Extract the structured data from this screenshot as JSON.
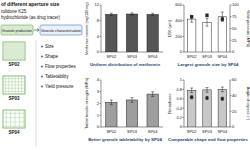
{
  "diagram": {
    "title": "of different aperture size",
    "lines": [
      "rolidone K25",
      "hydrochloride (as drug tracer)"
    ],
    "headers": [
      "Granule production",
      "Granule characterisation"
    ],
    "screens": [
      "SP02",
      "SP03",
      "SP04"
    ],
    "properties": [
      "Size",
      "Shape",
      "Flow properties",
      "Tabletability",
      "Yield pressure"
    ]
  },
  "chart_data": [
    {
      "type": "bar",
      "y_label": "Metformin content (mg/100 mg)",
      "caption": "Uniform distribution of metformin",
      "categories": [
        "SP02",
        "SP03",
        "SP04"
      ],
      "series": [
        {
          "color": "#555555",
          "values": [
            9.6,
            9.7,
            9.6
          ],
          "errors": [
            0.3,
            0.3,
            0.3
          ]
        }
      ],
      "ylim": [
        0,
        12
      ],
      "yticks": [
        0,
        4,
        8,
        12
      ]
    },
    {
      "type": "bar",
      "y_label": "D50 (µm)",
      "y2_label": "Yield pressure (MPa)",
      "caption": "Largest granule size by SP04",
      "categories": [
        "SP02",
        "SP03",
        "SP04"
      ],
      "series": [
        {
          "color": "#ffffff",
          "values": [
            420,
            380,
            450
          ],
          "errors": [
            40,
            50,
            60
          ]
        },
        {
          "type": "scatter",
          "marker": "square",
          "axis": "y2",
          "color": "#222222",
          "values": [
            75,
            78,
            70
          ],
          "errors": [
            3,
            3,
            3
          ]
        }
      ],
      "ylim": [
        0,
        600
      ],
      "yticks": [
        0,
        200,
        400,
        600
      ],
      "y2lim": [
        0,
        100
      ],
      "y2ticks": [
        0,
        25,
        50,
        75,
        100
      ]
    },
    {
      "type": "bar",
      "y_label": "Tablet tensile strength (MPa)",
      "caption": "Better granule tabletability by SP04",
      "categories": [
        "SP02",
        "SP03",
        "SP04"
      ],
      "series": [
        {
          "color": "#9e9e9e",
          "values": [
            2.1,
            2.3,
            2.8
          ],
          "errors": [
            0.2,
            0.2,
            0.2
          ]
        }
      ],
      "ylim": [
        0,
        4
      ],
      "yticks": [
        0,
        1,
        2,
        3,
        4
      ]
    },
    {
      "type": "bar",
      "y_label": "Roundness",
      "y2_label": "Angle of repose (°)",
      "caption": "Comparable shape and flow properties",
      "categories": [
        "SP02",
        "SP03",
        "SP04"
      ],
      "series": [
        {
          "color": "#c8c8c8",
          "values": [
            0.78,
            0.79,
            0.8
          ],
          "errors": [
            0.05,
            0.05,
            0.05
          ]
        },
        {
          "type": "scatter",
          "marker": "circle",
          "axis": "y2",
          "color": "#222222",
          "values": [
            38,
            37,
            36
          ],
          "errors": [
            2,
            2,
            2
          ]
        }
      ],
      "ylim": [
        0,
        1
      ],
      "yticks": [
        0,
        0.2,
        0.4,
        0.6,
        0.8,
        1
      ],
      "y2lim": [
        0,
        60
      ],
      "y2ticks": [
        0,
        20,
        40,
        60
      ]
    }
  ]
}
